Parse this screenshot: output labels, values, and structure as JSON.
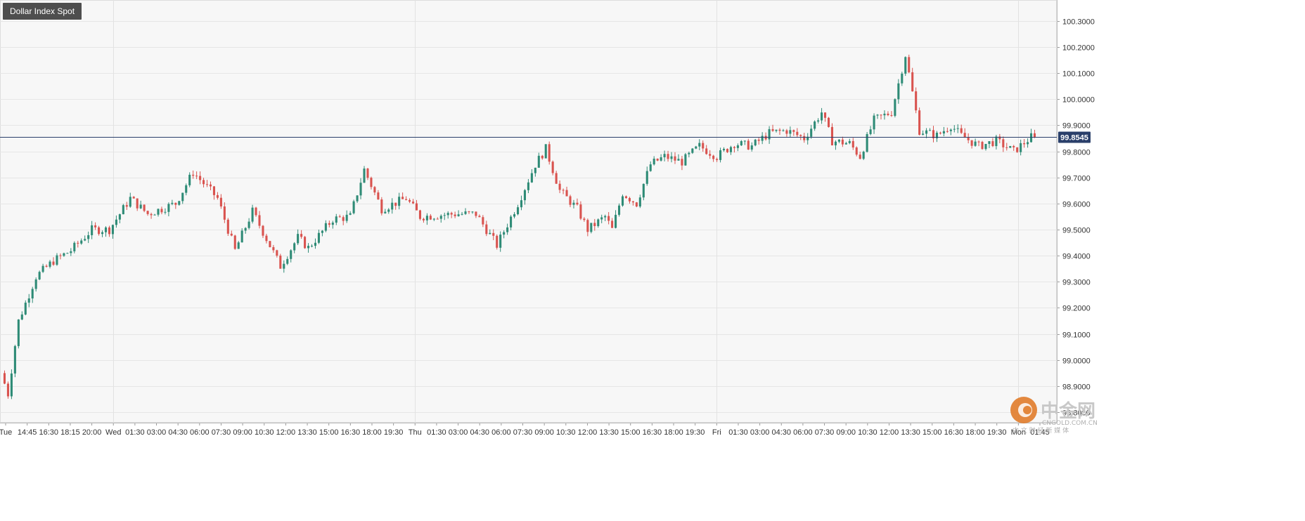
{
  "title": "Dollar Index Spot",
  "current_price_label": "99.8545",
  "colors": {
    "up": "#2e8b76",
    "down": "#d9534f",
    "grid": "#e6e6e6",
    "plot_bg": "#f7f7f7",
    "price_line": "#2a3f6a",
    "price_badge": "#2a3f6a"
  },
  "watermark": {
    "brand": "中金网",
    "url": "CNGOLD.COM.CN",
    "tagline": "中 文 财 经 新 媒 体",
    "logo_icon": "cngold-logo-icon"
  },
  "chart_data": {
    "type": "candlestick",
    "title": "Dollar Index Spot",
    "ylim": [
      98.76,
      100.38
    ],
    "y_ticks": [
      "100.3000",
      "100.2000",
      "100.1000",
      "100.0000",
      "99.9000",
      "99.8000",
      "99.7000",
      "99.6000",
      "99.5000",
      "99.4000",
      "99.3000",
      "99.2000",
      "99.1000",
      "99.0000",
      "98.9000",
      "98.8000"
    ],
    "x_tick_labels": [
      "Tue",
      "14:45",
      "16:30",
      "18:15",
      "20:00",
      "Wed",
      "01:30",
      "03:00",
      "04:30",
      "06:00",
      "07:30",
      "09:00",
      "10:30",
      "12:00",
      "13:30",
      "15:00",
      "16:30",
      "18:00",
      "19:30",
      "Thu",
      "01:30",
      "03:00",
      "04:30",
      "06:00",
      "07:30",
      "09:00",
      "10:30",
      "12:00",
      "13:30",
      "15:00",
      "16:30",
      "18:00",
      "19:30",
      "Fri",
      "01:30",
      "03:00",
      "04:30",
      "06:00",
      "07:30",
      "09:00",
      "10:30",
      "12:00",
      "13:30",
      "15:00",
      "16:30",
      "18:00",
      "19:30",
      "Mon",
      "01:45"
    ],
    "day_separators": [
      "Wed",
      "Thu",
      "Fri",
      "Mon"
    ],
    "current_price": 99.8545,
    "grid": true,
    "anchors": [
      {
        "i": 0,
        "p": 98.95
      },
      {
        "i": 2,
        "p": 98.87
      },
      {
        "i": 5,
        "p": 99.15
      },
      {
        "i": 10,
        "p": 99.32
      },
      {
        "i": 15,
        "p": 99.38
      },
      {
        "i": 20,
        "p": 99.42
      },
      {
        "i": 26,
        "p": 99.5
      },
      {
        "i": 31,
        "p": 99.5
      },
      {
        "i": 37,
        "p": 99.62
      },
      {
        "i": 42,
        "p": 99.56
      },
      {
        "i": 50,
        "p": 99.6
      },
      {
        "i": 55,
        "p": 99.72
      },
      {
        "i": 62,
        "p": 99.62
      },
      {
        "i": 67,
        "p": 99.42
      },
      {
        "i": 72,
        "p": 99.57
      },
      {
        "i": 80,
        "p": 99.36
      },
      {
        "i": 85,
        "p": 99.47
      },
      {
        "i": 88,
        "p": 99.43
      },
      {
        "i": 95,
        "p": 99.54
      },
      {
        "i": 100,
        "p": 99.55
      },
      {
        "i": 104,
        "p": 99.73
      },
      {
        "i": 109,
        "p": 99.58
      },
      {
        "i": 116,
        "p": 99.62
      },
      {
        "i": 120,
        "p": 99.55
      },
      {
        "i": 130,
        "p": 99.56
      },
      {
        "i": 136,
        "p": 99.56
      },
      {
        "i": 142,
        "p": 99.44
      },
      {
        "i": 148,
        "p": 99.6
      },
      {
        "i": 153,
        "p": 99.75
      },
      {
        "i": 156,
        "p": 99.81
      },
      {
        "i": 160,
        "p": 99.65
      },
      {
        "i": 165,
        "p": 99.58
      },
      {
        "i": 168,
        "p": 99.5
      },
      {
        "i": 173,
        "p": 99.55
      },
      {
        "i": 175,
        "p": 99.5
      },
      {
        "i": 178,
        "p": 99.64
      },
      {
        "i": 182,
        "p": 99.6
      },
      {
        "i": 186,
        "p": 99.75
      },
      {
        "i": 190,
        "p": 99.78
      },
      {
        "i": 195,
        "p": 99.76
      },
      {
        "i": 200,
        "p": 99.82
      },
      {
        "i": 205,
        "p": 99.78
      },
      {
        "i": 210,
        "p": 99.83
      },
      {
        "i": 215,
        "p": 99.82
      },
      {
        "i": 220,
        "p": 99.87
      },
      {
        "i": 225,
        "p": 99.88
      },
      {
        "i": 230,
        "p": 99.85
      },
      {
        "i": 235,
        "p": 99.95
      },
      {
        "i": 238,
        "p": 99.84
      },
      {
        "i": 243,
        "p": 99.83
      },
      {
        "i": 246,
        "p": 99.78
      },
      {
        "i": 250,
        "p": 99.92
      },
      {
        "i": 255,
        "p": 99.95
      },
      {
        "i": 259,
        "p": 100.17
      },
      {
        "i": 263,
        "p": 99.88
      },
      {
        "i": 268,
        "p": 99.86
      },
      {
        "i": 272,
        "p": 99.9
      },
      {
        "i": 275,
        "p": 99.86
      },
      {
        "i": 280,
        "p": 99.82
      },
      {
        "i": 285,
        "p": 99.84
      },
      {
        "i": 290,
        "p": 99.8
      },
      {
        "i": 295,
        "p": 99.8545
      }
    ]
  }
}
